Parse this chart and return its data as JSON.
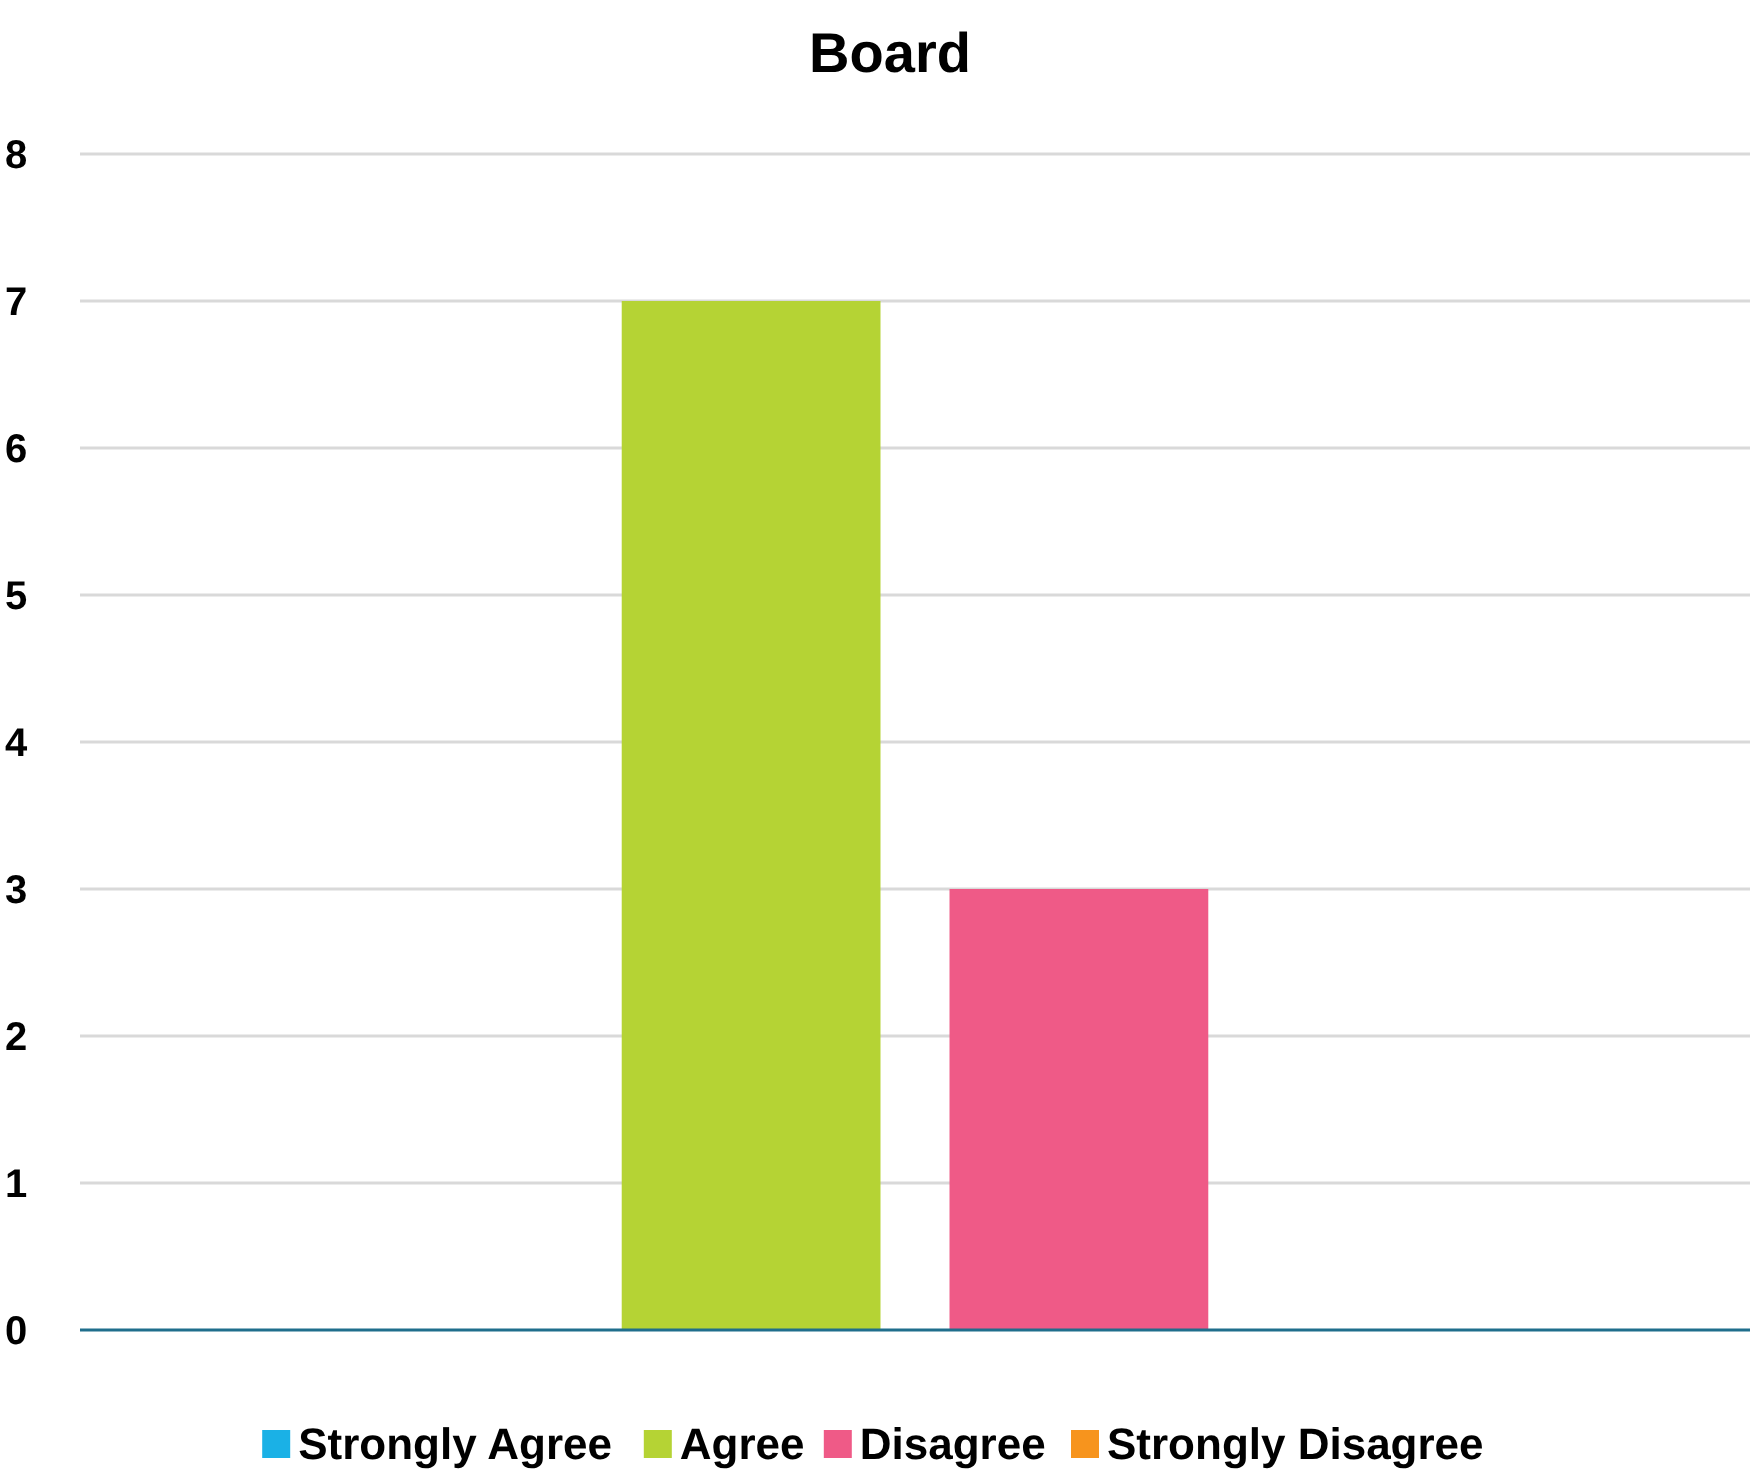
{
  "chart_data": {
    "type": "bar",
    "title": "Board",
    "categories": [
      null
    ],
    "series": [
      {
        "name": "Strongly Agree",
        "color": "#1ab1e6",
        "values": [
          0
        ]
      },
      {
        "name": "Agree",
        "color": "#b5d334",
        "values": [
          7
        ]
      },
      {
        "name": "Disagree",
        "color": "#ef5a87",
        "values": [
          3
        ]
      },
      {
        "name": "Strongly Disagree",
        "color": "#f7941d",
        "values": [
          0
        ]
      }
    ],
    "ylim": [
      0,
      8
    ],
    "yticks": [
      0,
      1,
      2,
      3,
      4,
      5,
      6,
      7,
      8
    ],
    "grid": "y",
    "legend": "bottom"
  }
}
